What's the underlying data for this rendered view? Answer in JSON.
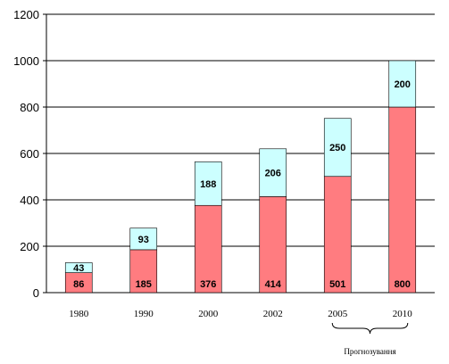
{
  "chart_data": {
    "type": "bar",
    "stacked": true,
    "categories": [
      "1980",
      "1990",
      "2000",
      "2002",
      "2005",
      "2010"
    ],
    "series": [
      {
        "values": [
          86,
          185,
          376,
          414,
          501,
          800
        ],
        "color": "#ff7c80"
      },
      {
        "values": [
          43,
          93,
          188,
          206,
          250,
          200
        ],
        "color": "#ccffff"
      }
    ],
    "ylim": [
      0,
      1200
    ],
    "yticks": [
      0,
      200,
      400,
      600,
      800,
      1000,
      1200
    ],
    "ytick_labels": [
      "0",
      "200",
      "400",
      "600",
      "800",
      "1000",
      "1200"
    ],
    "grid": true,
    "title": "",
    "xlabel": "",
    "ylabel": "",
    "annotation": {
      "text": "Прогнозування",
      "spans_categories": [
        "2005",
        "2010"
      ]
    },
    "colors": {
      "gridline": "#000000",
      "bar_outline": "#000000",
      "lower_fill": "#ff7c80",
      "upper_fill": "#ccffff"
    }
  }
}
